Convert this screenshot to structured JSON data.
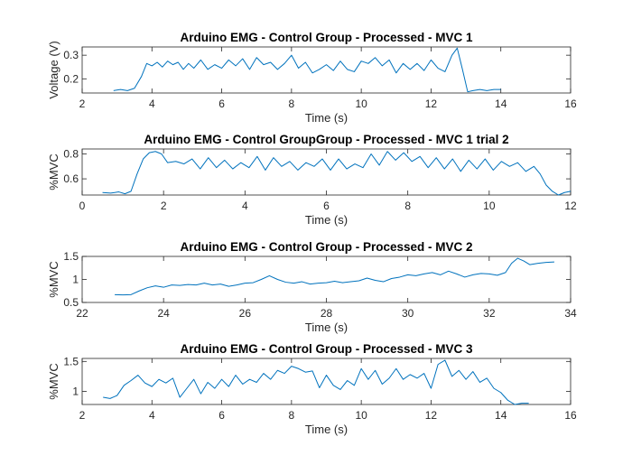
{
  "chart_data": [
    {
      "type": "line",
      "title": "Arduino EMG - Control Group - Processed - MVC 1",
      "xlabel": "Time (s)",
      "ylabel": "Voltage (V)",
      "xlim": [
        2,
        16
      ],
      "ylim": [
        0.14,
        0.335
      ],
      "xticks": [
        2,
        4,
        6,
        8,
        10,
        12,
        14,
        16
      ],
      "xtick_labels": [
        "2",
        "4",
        "6",
        "8",
        "10",
        "12",
        "14",
        "16"
      ],
      "yticks": [
        0.2,
        0.3
      ],
      "ytick_labels": [
        "0.2",
        "0.3"
      ],
      "grid": false,
      "series": [
        {
          "color": "#0072BD",
          "x": [
            2.9,
            3.1,
            3.3,
            3.5,
            3.7,
            3.85,
            4.0,
            4.15,
            4.3,
            4.45,
            4.6,
            4.75,
            4.9,
            5.05,
            5.2,
            5.4,
            5.6,
            5.8,
            6.0,
            6.2,
            6.4,
            6.6,
            6.8,
            7.0,
            7.2,
            7.4,
            7.6,
            7.8,
            8.0,
            8.2,
            8.4,
            8.6,
            8.8,
            9.0,
            9.2,
            9.4,
            9.6,
            9.8,
            10.0,
            10.2,
            10.4,
            10.6,
            10.8,
            11.0,
            11.2,
            11.4,
            11.6,
            11.8,
            12.0,
            12.2,
            12.4,
            12.6,
            12.75,
            12.9,
            13.05,
            13.2,
            13.4,
            13.6,
            13.8,
            14.0
          ],
          "y": [
            0.15,
            0.155,
            0.15,
            0.16,
            0.21,
            0.265,
            0.255,
            0.27,
            0.25,
            0.275,
            0.26,
            0.27,
            0.24,
            0.265,
            0.245,
            0.28,
            0.24,
            0.26,
            0.245,
            0.28,
            0.255,
            0.285,
            0.24,
            0.29,
            0.26,
            0.27,
            0.24,
            0.265,
            0.3,
            0.245,
            0.27,
            0.225,
            0.24,
            0.26,
            0.235,
            0.275,
            0.24,
            0.23,
            0.275,
            0.265,
            0.29,
            0.255,
            0.28,
            0.225,
            0.265,
            0.24,
            0.265,
            0.235,
            0.28,
            0.245,
            0.23,
            0.3,
            0.33,
            0.24,
            0.145,
            0.15,
            0.155,
            0.15,
            0.155,
            0.155
          ]
        }
      ]
    },
    {
      "type": "line",
      "title": "Arduino EMG - Control GroupGroup - Processed - MVC 1 trial 2",
      "xlabel": "Time (s)",
      "ylabel": "%MVC",
      "xlim": [
        0,
        12
      ],
      "ylim": [
        0.47,
        0.84
      ],
      "xticks": [
        0,
        2,
        4,
        6,
        8,
        10,
        12
      ],
      "xtick_labels": [
        "0",
        "2",
        "4",
        "6",
        "8",
        "10",
        "12"
      ],
      "yticks": [
        0.6,
        0.8
      ],
      "ytick_labels": [
        "0.6",
        "0.8"
      ],
      "grid": false,
      "series": [
        {
          "color": "#0072BD",
          "x": [
            0.5,
            0.7,
            0.9,
            1.05,
            1.2,
            1.35,
            1.5,
            1.65,
            1.8,
            1.95,
            2.1,
            2.3,
            2.5,
            2.7,
            2.9,
            3.1,
            3.3,
            3.5,
            3.7,
            3.9,
            4.1,
            4.3,
            4.5,
            4.7,
            4.9,
            5.1,
            5.3,
            5.5,
            5.7,
            5.9,
            6.1,
            6.3,
            6.5,
            6.7,
            6.9,
            7.1,
            7.3,
            7.5,
            7.7,
            7.9,
            8.1,
            8.3,
            8.5,
            8.7,
            8.9,
            9.1,
            9.3,
            9.5,
            9.7,
            9.9,
            10.1,
            10.3,
            10.5,
            10.7,
            10.9,
            11.1,
            11.25,
            11.4,
            11.55,
            11.7,
            11.85,
            12.0
          ],
          "y": [
            0.49,
            0.485,
            0.495,
            0.48,
            0.5,
            0.64,
            0.76,
            0.81,
            0.82,
            0.8,
            0.73,
            0.74,
            0.72,
            0.76,
            0.68,
            0.77,
            0.69,
            0.75,
            0.68,
            0.73,
            0.69,
            0.78,
            0.67,
            0.77,
            0.7,
            0.74,
            0.67,
            0.73,
            0.7,
            0.76,
            0.67,
            0.76,
            0.68,
            0.72,
            0.69,
            0.8,
            0.71,
            0.82,
            0.75,
            0.81,
            0.74,
            0.78,
            0.69,
            0.77,
            0.68,
            0.76,
            0.66,
            0.75,
            0.68,
            0.76,
            0.67,
            0.74,
            0.7,
            0.73,
            0.66,
            0.7,
            0.64,
            0.55,
            0.5,
            0.47,
            0.49,
            0.5
          ]
        }
      ]
    },
    {
      "type": "line",
      "title": "Arduino EMG - Control Group - Processed - MVC 2",
      "xlabel": "Time (s)",
      "ylabel": "%MVC",
      "xlim": [
        22,
        34
      ],
      "ylim": [
        0.5,
        1.5
      ],
      "xticks": [
        22,
        24,
        26,
        28,
        30,
        32,
        34
      ],
      "xtick_labels": [
        "22",
        "24",
        "26",
        "28",
        "30",
        "32",
        "34"
      ],
      "yticks": [
        0.5,
        1,
        1.5
      ],
      "ytick_labels": [
        "0.5",
        "1",
        "1.5"
      ],
      "grid": false,
      "series": [
        {
          "color": "#0072BD",
          "x": [
            22.8,
            23.0,
            23.2,
            23.4,
            23.6,
            23.8,
            24.0,
            24.2,
            24.4,
            24.6,
            24.8,
            25.0,
            25.2,
            25.4,
            25.6,
            25.8,
            26.0,
            26.2,
            26.4,
            26.6,
            26.8,
            27.0,
            27.2,
            27.4,
            27.6,
            27.8,
            28.0,
            28.2,
            28.4,
            28.6,
            28.8,
            29.0,
            29.2,
            29.4,
            29.6,
            29.8,
            30.0,
            30.2,
            30.4,
            30.6,
            30.8,
            31.0,
            31.2,
            31.4,
            31.6,
            31.8,
            32.0,
            32.2,
            32.4,
            32.55,
            32.7,
            32.85,
            33.0,
            33.2,
            33.4,
            33.6
          ],
          "y": [
            0.67,
            0.665,
            0.67,
            0.75,
            0.82,
            0.86,
            0.83,
            0.88,
            0.87,
            0.89,
            0.88,
            0.92,
            0.88,
            0.9,
            0.85,
            0.88,
            0.92,
            0.93,
            1.0,
            1.08,
            1.0,
            0.94,
            0.92,
            0.95,
            0.9,
            0.92,
            0.93,
            0.96,
            0.93,
            0.95,
            0.97,
            1.03,
            0.98,
            0.95,
            1.02,
            1.05,
            1.1,
            1.08,
            1.12,
            1.15,
            1.1,
            1.18,
            1.12,
            1.05,
            1.1,
            1.13,
            1.12,
            1.09,
            1.15,
            1.35,
            1.46,
            1.4,
            1.32,
            1.35,
            1.37,
            1.38
          ]
        }
      ]
    },
    {
      "type": "line",
      "title": "Arduino EMG - Control Group - Processed - MVC 3",
      "xlabel": "Time (s)",
      "ylabel": "%MVC",
      "xlim": [
        2,
        16
      ],
      "ylim": [
        0.78,
        1.55
      ],
      "xticks": [
        2,
        4,
        6,
        8,
        10,
        12,
        14,
        16
      ],
      "xtick_labels": [
        "2",
        "4",
        "6",
        "8",
        "10",
        "12",
        "14",
        "16"
      ],
      "yticks": [
        1,
        1.5
      ],
      "ytick_labels": [
        "1",
        "1.5"
      ],
      "grid": false,
      "series": [
        {
          "color": "#0072BD",
          "x": [
            2.6,
            2.8,
            3.0,
            3.2,
            3.4,
            3.6,
            3.8,
            4.0,
            4.2,
            4.4,
            4.6,
            4.8,
            5.0,
            5.2,
            5.4,
            5.6,
            5.8,
            6.0,
            6.2,
            6.4,
            6.6,
            6.8,
            7.0,
            7.2,
            7.4,
            7.6,
            7.8,
            8.0,
            8.2,
            8.4,
            8.6,
            8.8,
            9.0,
            9.2,
            9.4,
            9.6,
            9.8,
            10.0,
            10.2,
            10.4,
            10.6,
            10.8,
            11.0,
            11.2,
            11.4,
            11.6,
            11.8,
            12.0,
            12.2,
            12.4,
            12.6,
            12.8,
            13.0,
            13.2,
            13.4,
            13.6,
            13.8,
            14.0,
            14.2,
            14.4,
            14.6,
            14.8
          ],
          "y": [
            0.9,
            0.88,
            0.93,
            1.1,
            1.18,
            1.27,
            1.14,
            1.08,
            1.2,
            1.14,
            1.22,
            0.9,
            1.05,
            1.2,
            0.96,
            1.15,
            1.05,
            1.2,
            1.08,
            1.27,
            1.12,
            1.2,
            1.15,
            1.3,
            1.2,
            1.35,
            1.3,
            1.42,
            1.38,
            1.32,
            1.34,
            1.06,
            1.27,
            1.1,
            1.03,
            1.18,
            1.1,
            1.38,
            1.2,
            1.35,
            1.12,
            1.22,
            1.38,
            1.2,
            1.28,
            1.22,
            1.3,
            1.05,
            1.45,
            1.52,
            1.25,
            1.35,
            1.2,
            1.33,
            1.15,
            1.22,
            1.05,
            0.98,
            0.85,
            0.78,
            0.8,
            0.8
          ]
        }
      ]
    }
  ]
}
